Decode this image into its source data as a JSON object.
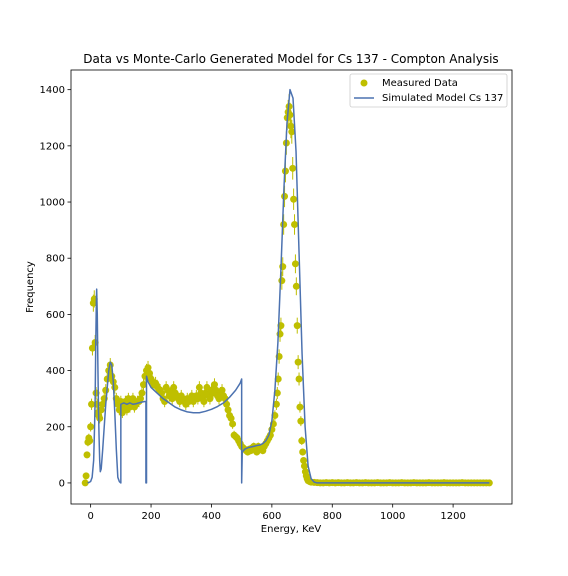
{
  "chart_data": {
    "type": "scatter",
    "title": "Data vs Monte-Carlo Generated Model for Cs 137 - Compton Analysis",
    "xlabel": "Energy, KeV",
    "ylabel": "Frequency",
    "xlim": [
      -65,
      1395
    ],
    "ylim": [
      -75,
      1470
    ],
    "xticks": [
      0,
      200,
      400,
      600,
      800,
      1000,
      1200
    ],
    "yticks": [
      0,
      200,
      400,
      600,
      800,
      1000,
      1200,
      1400
    ],
    "grid": false,
    "legend": {
      "placement": "top-right"
    },
    "series": [
      {
        "name": "Measured Data",
        "kind": "scatter-errorbar",
        "color": "#bfbf00",
        "points": [
          [
            -18,
            0
          ],
          [
            -15,
            25
          ],
          [
            -12,
            100
          ],
          [
            -9,
            145
          ],
          [
            -6,
            160
          ],
          [
            -3,
            150
          ],
          [
            0,
            200
          ],
          [
            3,
            280
          ],
          [
            6,
            480
          ],
          [
            9,
            640
          ],
          [
            12,
            655
          ],
          [
            15,
            500
          ],
          [
            18,
            320
          ],
          [
            21,
            280
          ],
          [
            24,
            250
          ],
          [
            27,
            240
          ],
          [
            30,
            230
          ],
          [
            35,
            260
          ],
          [
            40,
            280
          ],
          [
            45,
            300
          ],
          [
            50,
            330
          ],
          [
            55,
            370
          ],
          [
            60,
            400
          ],
          [
            65,
            420
          ],
          [
            70,
            380
          ],
          [
            75,
            360
          ],
          [
            80,
            340
          ],
          [
            85,
            300
          ],
          [
            90,
            280
          ],
          [
            95,
            260
          ],
          [
            100,
            290
          ],
          [
            105,
            250
          ],
          [
            110,
            270
          ],
          [
            115,
            290
          ],
          [
            120,
            260
          ],
          [
            125,
            300
          ],
          [
            130,
            270
          ],
          [
            135,
            290
          ],
          [
            140,
            300
          ],
          [
            145,
            270
          ],
          [
            150,
            280
          ],
          [
            155,
            290
          ],
          [
            160,
            290
          ],
          [
            165,
            300
          ],
          [
            170,
            320
          ],
          [
            175,
            350
          ],
          [
            180,
            380
          ],
          [
            185,
            400
          ],
          [
            190,
            410
          ],
          [
            195,
            390
          ],
          [
            200,
            370
          ],
          [
            205,
            360
          ],
          [
            210,
            350
          ],
          [
            215,
            355
          ],
          [
            220,
            345
          ],
          [
            225,
            335
          ],
          [
            230,
            330
          ],
          [
            235,
            320
          ],
          [
            240,
            300
          ],
          [
            245,
            290
          ],
          [
            250,
            340
          ],
          [
            255,
            330
          ],
          [
            260,
            310
          ],
          [
            265,
            320
          ],
          [
            270,
            300
          ],
          [
            275,
            340
          ],
          [
            280,
            320
          ],
          [
            285,
            310
          ],
          [
            290,
            300
          ],
          [
            295,
            290
          ],
          [
            300,
            310
          ],
          [
            305,
            300
          ],
          [
            310,
            290
          ],
          [
            315,
            280
          ],
          [
            320,
            300
          ],
          [
            325,
            290
          ],
          [
            330,
            300
          ],
          [
            335,
            310
          ],
          [
            340,
            290
          ],
          [
            345,
            300
          ],
          [
            350,
            310
          ],
          [
            355,
            300
          ],
          [
            360,
            340
          ],
          [
            365,
            320
          ],
          [
            370,
            300
          ],
          [
            375,
            290
          ],
          [
            380,
            320
          ],
          [
            385,
            340
          ],
          [
            390,
            310
          ],
          [
            395,
            300
          ],
          [
            400,
            330
          ],
          [
            405,
            320
          ],
          [
            410,
            350
          ],
          [
            415,
            330
          ],
          [
            420,
            310
          ],
          [
            425,
            300
          ],
          [
            430,
            320
          ],
          [
            435,
            330
          ],
          [
            440,
            310
          ],
          [
            445,
            300
          ],
          [
            450,
            280
          ],
          [
            455,
            260
          ],
          [
            460,
            240
          ],
          [
            465,
            230
          ],
          [
            470,
            210
          ],
          [
            475,
            170
          ],
          [
            480,
            165
          ],
          [
            485,
            160
          ],
          [
            490,
            150
          ],
          [
            495,
            140
          ],
          [
            500,
            130
          ],
          [
            505,
            125
          ],
          [
            510,
            120
          ],
          [
            515,
            115
          ],
          [
            520,
            110
          ],
          [
            525,
            120
          ],
          [
            530,
            115
          ],
          [
            535,
            125
          ],
          [
            540,
            130
          ],
          [
            545,
            120
          ],
          [
            550,
            110
          ],
          [
            555,
            130
          ],
          [
            560,
            120
          ],
          [
            565,
            125
          ],
          [
            570,
            115
          ],
          [
            575,
            130
          ],
          [
            580,
            140
          ],
          [
            585,
            150
          ],
          [
            590,
            160
          ],
          [
            595,
            170
          ],
          [
            600,
            190
          ],
          [
            605,
            210
          ],
          [
            610,
            240
          ],
          [
            615,
            280
          ],
          [
            618,
            320
          ],
          [
            621,
            370
          ],
          [
            624,
            450
          ],
          [
            627,
            530
          ],
          [
            630,
            560
          ],
          [
            633,
            720
          ],
          [
            636,
            770
          ],
          [
            639,
            920
          ],
          [
            642,
            1020
          ],
          [
            645,
            1110
          ],
          [
            648,
            1210
          ],
          [
            651,
            1300
          ],
          [
            654,
            1320
          ],
          [
            657,
            1340
          ],
          [
            660,
            1310
          ],
          [
            663,
            1270
          ],
          [
            666,
            1250
          ],
          [
            669,
            1120
          ],
          [
            672,
            1010
          ],
          [
            675,
            920
          ],
          [
            678,
            780
          ],
          [
            681,
            700
          ],
          [
            684,
            560
          ],
          [
            687,
            430
          ],
          [
            690,
            370
          ],
          [
            693,
            270
          ],
          [
            696,
            220
          ],
          [
            699,
            150
          ],
          [
            702,
            110
          ],
          [
            705,
            80
          ],
          [
            708,
            60
          ],
          [
            711,
            40
          ],
          [
            714,
            25
          ],
          [
            717,
            15
          ],
          [
            720,
            8
          ],
          [
            725,
            5
          ],
          [
            730,
            3
          ],
          [
            740,
            2
          ],
          [
            750,
            1
          ],
          [
            760,
            0
          ],
          [
            770,
            0
          ],
          [
            780,
            1
          ],
          [
            790,
            0
          ],
          [
            800,
            1
          ],
          [
            810,
            0
          ],
          [
            820,
            1
          ],
          [
            830,
            0
          ],
          [
            840,
            0
          ],
          [
            850,
            1
          ],
          [
            860,
            0
          ],
          [
            870,
            0
          ],
          [
            880,
            1
          ],
          [
            890,
            0
          ],
          [
            900,
            0
          ],
          [
            910,
            1
          ],
          [
            920,
            0
          ],
          [
            930,
            0
          ],
          [
            940,
            0
          ],
          [
            950,
            1
          ],
          [
            960,
            0
          ],
          [
            970,
            0
          ],
          [
            980,
            0
          ],
          [
            990,
            1
          ],
          [
            1000,
            0
          ],
          [
            1010,
            0
          ],
          [
            1020,
            0
          ],
          [
            1030,
            1
          ],
          [
            1040,
            0
          ],
          [
            1050,
            0
          ],
          [
            1060,
            0
          ],
          [
            1070,
            1
          ],
          [
            1080,
            0
          ],
          [
            1090,
            0
          ],
          [
            1100,
            0
          ],
          [
            1110,
            0
          ],
          [
            1120,
            1
          ],
          [
            1130,
            0
          ],
          [
            1140,
            0
          ],
          [
            1150,
            0
          ],
          [
            1160,
            0
          ],
          [
            1170,
            1
          ],
          [
            1180,
            0
          ],
          [
            1190,
            0
          ],
          [
            1200,
            0
          ],
          [
            1210,
            0
          ],
          [
            1220,
            0
          ],
          [
            1230,
            1
          ],
          [
            1240,
            0
          ],
          [
            1250,
            0
          ],
          [
            1260,
            0
          ],
          [
            1270,
            0
          ],
          [
            1280,
            0
          ],
          [
            1290,
            0
          ],
          [
            1300,
            0
          ],
          [
            1310,
            0
          ],
          [
            1320,
            0
          ]
        ]
      },
      {
        "name": "Simulated Model Cs 137",
        "kind": "line",
        "color": "#4c72b0",
        "points": [
          [
            -10,
            0
          ],
          [
            -5,
            2
          ],
          [
            0,
            5
          ],
          [
            5,
            20
          ],
          [
            10,
            80
          ],
          [
            13,
            200
          ],
          [
            15,
            300
          ],
          [
            17,
            500
          ],
          [
            19,
            650
          ],
          [
            20,
            690
          ],
          [
            22,
            600
          ],
          [
            24,
            420
          ],
          [
            26,
            260
          ],
          [
            28,
            160
          ],
          [
            30,
            80
          ],
          [
            32,
            40
          ],
          [
            35,
            50
          ],
          [
            40,
            120
          ],
          [
            45,
            200
          ],
          [
            50,
            280
          ],
          [
            55,
            340
          ],
          [
            60,
            400
          ],
          [
            65,
            430
          ],
          [
            70,
            420
          ],
          [
            75,
            360
          ],
          [
            80,
            250
          ],
          [
            85,
            120
          ],
          [
            90,
            20
          ],
          [
            95,
            5
          ],
          [
            100,
            0
          ],
          [
            100,
            280
          ],
          [
            110,
            285
          ],
          [
            120,
            280
          ],
          [
            130,
            285
          ],
          [
            140,
            280
          ],
          [
            150,
            282
          ],
          [
            160,
            285
          ],
          [
            170,
            288
          ],
          [
            180,
            290
          ],
          [
            183,
            290
          ],
          [
            183,
            0
          ],
          [
            185,
            0
          ],
          [
            185,
            380
          ],
          [
            190,
            360
          ],
          [
            200,
            340
          ],
          [
            220,
            320
          ],
          [
            240,
            300
          ],
          [
            260,
            285
          ],
          [
            280,
            270
          ],
          [
            300,
            260
          ],
          [
            320,
            253
          ],
          [
            340,
            250
          ],
          [
            360,
            250
          ],
          [
            380,
            255
          ],
          [
            400,
            262
          ],
          [
            420,
            272
          ],
          [
            440,
            285
          ],
          [
            460,
            305
          ],
          [
            480,
            330
          ],
          [
            495,
            355
          ],
          [
            500,
            370
          ],
          [
            500,
            0
          ],
          [
            502,
            110
          ],
          [
            510,
            120
          ],
          [
            520,
            125
          ],
          [
            530,
            128
          ],
          [
            540,
            130
          ],
          [
            550,
            133
          ],
          [
            560,
            135
          ],
          [
            570,
            140
          ],
          [
            580,
            150
          ],
          [
            590,
            170
          ],
          [
            600,
            220
          ],
          [
            610,
            330
          ],
          [
            620,
            500
          ],
          [
            630,
            760
          ],
          [
            640,
            1050
          ],
          [
            650,
            1280
          ],
          [
            660,
            1400
          ],
          [
            670,
            1370
          ],
          [
            680,
            1180
          ],
          [
            690,
            820
          ],
          [
            700,
            460
          ],
          [
            710,
            200
          ],
          [
            720,
            60
          ],
          [
            730,
            15
          ],
          [
            740,
            3
          ],
          [
            750,
            0
          ],
          [
            800,
            0
          ],
          [
            900,
            0
          ],
          [
            1000,
            0
          ],
          [
            1100,
            0
          ],
          [
            1200,
            0
          ],
          [
            1300,
            0
          ],
          [
            1320,
            0
          ]
        ]
      }
    ]
  }
}
